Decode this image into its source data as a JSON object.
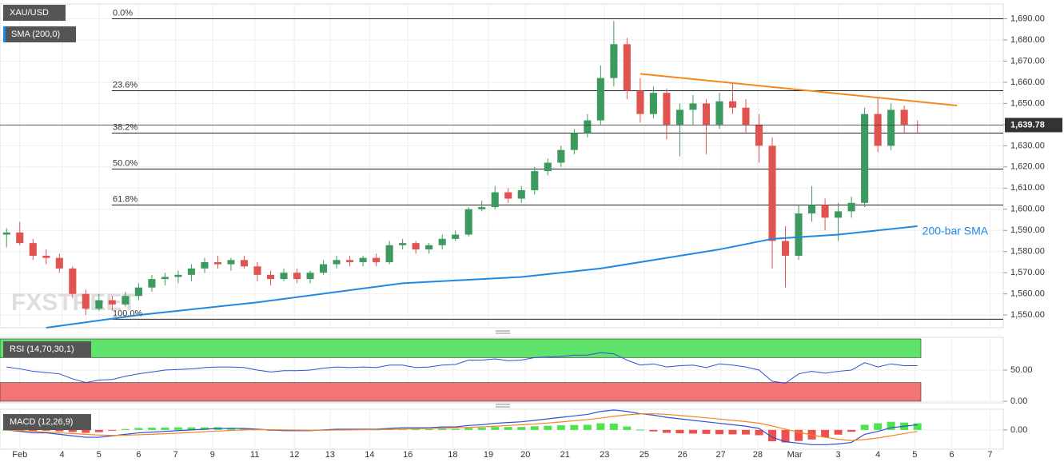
{
  "chart_data": [
    {
      "type": "candlestick",
      "title": "XAU/USD",
      "indicator_label": "SMA (200,0)",
      "watermark": "FXSTREET",
      "xlim": [
        -0.5,
        75.5
      ],
      "xticks": [
        {
          "value": 1.0,
          "label": "Feb"
        },
        {
          "value": 4.2,
          "label": "4"
        },
        {
          "value": 7.0,
          "label": "5"
        },
        {
          "value": 10.0,
          "label": "6"
        },
        {
          "value": 12.8,
          "label": "7"
        },
        {
          "value": 15.6,
          "label": "9"
        },
        {
          "value": 18.8,
          "label": "11"
        },
        {
          "value": 21.8,
          "label": "12"
        },
        {
          "value": 24.5,
          "label": "13"
        },
        {
          "value": 27.5,
          "label": "14"
        },
        {
          "value": 30.4,
          "label": "16"
        },
        {
          "value": 33.8,
          "label": "18"
        },
        {
          "value": 36.5,
          "label": "19"
        },
        {
          "value": 39.3,
          "label": "20"
        },
        {
          "value": 42.3,
          "label": "21"
        },
        {
          "value": 45.3,
          "label": "23"
        },
        {
          "value": 48.3,
          "label": "25"
        },
        {
          "value": 51.2,
          "label": "26"
        },
        {
          "value": 54.1,
          "label": "27"
        },
        {
          "value": 56.9,
          "label": "28"
        },
        {
          "value": 59.7,
          "label": "Mar"
        },
        {
          "value": 63.0,
          "label": "3"
        },
        {
          "value": 66.0,
          "label": "4"
        },
        {
          "value": 68.8,
          "label": "5"
        },
        {
          "value": 71.6,
          "label": "6"
        },
        {
          "value": 74.5,
          "label": "7"
        }
      ],
      "ylim": [
        1544,
        1697
      ],
      "yticks": [
        {
          "value": 1550,
          "label": "1,550.00"
        },
        {
          "value": 1560,
          "label": "1,560.00"
        },
        {
          "value": 1570,
          "label": "1,570.00"
        },
        {
          "value": 1580,
          "label": "1,580.00"
        },
        {
          "value": 1590,
          "label": "1,590.00"
        },
        {
          "value": 1600,
          "label": "1,600.00"
        },
        {
          "value": 1610,
          "label": "1,610.00"
        },
        {
          "value": 1620,
          "label": "1,620.00"
        },
        {
          "value": 1630,
          "label": "1,630.00"
        },
        {
          "value": 1640,
          "label": "1,640.00"
        },
        {
          "value": 1650,
          "label": "1,650.00"
        },
        {
          "value": 1660,
          "label": "1,660.00"
        },
        {
          "value": 1670,
          "label": "1,670.00"
        },
        {
          "value": 1680,
          "label": "1,680.00"
        },
        {
          "value": 1690,
          "label": "1,690.00"
        }
      ],
      "up_color": "#3c9a5f",
      "down_color": "#e0534f",
      "open": [
        1588,
        1589,
        1584,
        1578,
        1577,
        1572,
        1560,
        1553,
        1557,
        1555,
        1559,
        1563,
        1567,
        1568,
        1569,
        1572,
        1575,
        1574,
        1576,
        1573,
        1569,
        1567,
        1570,
        1567,
        1570,
        1574,
        1576,
        1575,
        1577,
        1575,
        1583,
        1584,
        1581,
        1583,
        1586,
        1588,
        1600,
        1601,
        1608,
        1605,
        1609,
        1618,
        1622,
        1628,
        1636,
        1642,
        1662,
        1678,
        1656,
        1645,
        1655,
        1640,
        1647,
        1650,
        1640,
        1651,
        1648,
        1640,
        1630,
        1585,
        1578,
        1598,
        1602,
        1596,
        1599,
        1603,
        1645,
        1630,
        1647,
        1640
      ],
      "high": [
        1591,
        1594,
        1586,
        1581,
        1579,
        1573,
        1562,
        1560,
        1559,
        1561,
        1565,
        1569,
        1570,
        1571,
        1574,
        1577,
        1578,
        1577,
        1578,
        1575,
        1571,
        1572,
        1572,
        1571,
        1576,
        1578,
        1578,
        1578,
        1579,
        1585,
        1586,
        1585,
        1584,
        1588,
        1590,
        1601,
        1604,
        1611,
        1610,
        1611,
        1620,
        1624,
        1630,
        1638,
        1645,
        1668,
        1689,
        1681,
        1662,
        1658,
        1657,
        1650,
        1654,
        1652,
        1655,
        1660,
        1652,
        1645,
        1634,
        1592,
        1602,
        1611,
        1605,
        1603,
        1606,
        1648,
        1653,
        1650,
        1649,
        1642
      ],
      "low": [
        1582,
        1583,
        1576,
        1574,
        1570,
        1558,
        1550,
        1552,
        1552,
        1554,
        1557,
        1561,
        1564,
        1565,
        1566,
        1570,
        1572,
        1571,
        1572,
        1566,
        1564,
        1566,
        1565,
        1565,
        1569,
        1572,
        1573,
        1573,
        1573,
        1574,
        1581,
        1579,
        1579,
        1581,
        1585,
        1587,
        1599,
        1600,
        1603,
        1603,
        1607,
        1616,
        1620,
        1626,
        1634,
        1640,
        1658,
        1652,
        1641,
        1643,
        1633,
        1625,
        1640,
        1626,
        1638,
        1645,
        1636,
        1622,
        1572,
        1563,
        1576,
        1594,
        1590,
        1585,
        1596,
        1601,
        1627,
        1628,
        1636,
        1636
      ],
      "close": [
        1589,
        1584,
        1578,
        1577,
        1572,
        1560,
        1553,
        1557,
        1555,
        1559,
        1563,
        1567,
        1568,
        1569,
        1572,
        1575,
        1574,
        1576,
        1573,
        1569,
        1567,
        1570,
        1567,
        1570,
        1574,
        1576,
        1575,
        1577,
        1575,
        1583,
        1584,
        1581,
        1583,
        1586,
        1588,
        1600,
        1601,
        1608,
        1605,
        1609,
        1618,
        1622,
        1628,
        1636,
        1642,
        1662,
        1678,
        1656,
        1645,
        1655,
        1640,
        1647,
        1650,
        1640,
        1651,
        1648,
        1640,
        1630,
        1585,
        1578,
        1598,
        1602,
        1596,
        1599,
        1603,
        1645,
        1630,
        1647,
        1640,
        1639.78
      ],
      "sma": {
        "name": "200-bar SMA",
        "color": "#1e88e5",
        "x": [
          3,
          10,
          19,
          30,
          39,
          45,
          54,
          58,
          63,
          69
        ],
        "values": [
          1544,
          1550,
          1556,
          1565,
          1568,
          1572,
          1581,
          1586,
          1588,
          1592
        ]
      },
      "trendline": {
        "color": "#f5871f",
        "x": [
          48,
          72
        ],
        "values": [
          1664,
          1649
        ]
      },
      "fibonacci": [
        {
          "value": 1690,
          "label": "0.0%"
        },
        {
          "value": 1656,
          "label": "23.6%"
        },
        {
          "value": 1636,
          "label": "38.2%"
        },
        {
          "value": 1619,
          "label": "50.0%"
        },
        {
          "value": 1602,
          "label": "61.8%"
        },
        {
          "value": 1548,
          "label": "100.0%"
        }
      ],
      "last_price": {
        "value": 1639.78,
        "label": "1,639.78"
      }
    },
    {
      "type": "line",
      "title": "RSI (14,70,30,1)",
      "ylim": [
        0,
        100
      ],
      "yticks": [
        {
          "value": 0,
          "label": "0.00"
        },
        {
          "value": 50,
          "label": "50.00"
        }
      ],
      "bands": [
        {
          "from": 70,
          "to": 100,
          "color": "#5fe36a"
        },
        {
          "from": 0,
          "to": 30,
          "color": "#f27474"
        }
      ],
      "series": [
        {
          "color": "#2f4fd8",
          "values": [
            55,
            52,
            48,
            46,
            44,
            36,
            30,
            34,
            35,
            40,
            44,
            47,
            50,
            51,
            52,
            54,
            55,
            55,
            54,
            50,
            47,
            49,
            49,
            50,
            53,
            55,
            54,
            55,
            54,
            58,
            58,
            54,
            55,
            58,
            59,
            66,
            66,
            68,
            65,
            66,
            70,
            71,
            72,
            74,
            74,
            78,
            76,
            66,
            58,
            60,
            55,
            57,
            58,
            54,
            60,
            58,
            55,
            50,
            32,
            29,
            44,
            48,
            45,
            48,
            50,
            62,
            55,
            60,
            57,
            57
          ]
        }
      ]
    },
    {
      "type": "macd",
      "title": "MACD (12,26,9)",
      "ylim": [
        -12,
        14
      ],
      "yticks": [
        {
          "value": 0,
          "label": "0.00"
        }
      ],
      "series": [
        {
          "color": "#2f4fd8",
          "values": [
            0,
            -1,
            -2,
            -2,
            -3,
            -4,
            -5,
            -5,
            -4,
            -3,
            -2,
            -1.5,
            -1,
            -0.5,
            0,
            0.5,
            1,
            1,
            1,
            0.5,
            0,
            -0.5,
            -0.5,
            -0.5,
            0,
            0.5,
            0.5,
            0.5,
            0.5,
            1,
            1.5,
            1.5,
            1.5,
            2,
            2,
            3,
            3.5,
            4.5,
            5,
            5.5,
            6.5,
            7.5,
            8.5,
            9.5,
            10.5,
            12.5,
            13.5,
            12.5,
            11,
            10,
            8.5,
            7.5,
            6.5,
            5.5,
            4.5,
            3.5,
            2.5,
            1,
            -5,
            -8,
            -9,
            -10,
            -10,
            -9.5,
            -8.5,
            -3,
            -1,
            1.5,
            2.5,
            3.5
          ]
        },
        {
          "color": "#f5871f",
          "values": [
            0,
            -0.5,
            -1,
            -1.5,
            -2,
            -2.5,
            -3,
            -3.5,
            -3.7,
            -3.6,
            -3.3,
            -3,
            -2.6,
            -2.2,
            -1.7,
            -1.2,
            -0.8,
            -0.4,
            0,
            0.1,
            0.1,
            0,
            -0.1,
            -0.2,
            -0.2,
            -0.1,
            0,
            0.1,
            0.2,
            0.4,
            0.6,
            0.8,
            1,
            1.2,
            1.4,
            1.7,
            2,
            2.5,
            3,
            3.5,
            4,
            4.7,
            5.4,
            6.2,
            7,
            8,
            9.2,
            10.2,
            10.8,
            11,
            10.5,
            9.8,
            9,
            8.2,
            7.4,
            6.5,
            5.6,
            4.6,
            2.7,
            0.5,
            -1.5,
            -3.5,
            -5,
            -6.3,
            -7.2,
            -6.5,
            -5.5,
            -4,
            -2.5,
            -1
          ]
        }
      ],
      "histogram": {
        "up_color": "#22dd22",
        "down_color": "#ee2222",
        "values": [
          0,
          -0.5,
          -1,
          -0.5,
          -1,
          -1.5,
          -2,
          -1.5,
          -0.3,
          0.6,
          1.3,
          1.5,
          1.6,
          1.7,
          1.7,
          1.7,
          1.8,
          1.4,
          1,
          0.4,
          -0.1,
          -0.5,
          -0.4,
          -0.3,
          0.2,
          0.6,
          0.5,
          0.4,
          0.3,
          0.6,
          0.9,
          0.7,
          0.5,
          0.8,
          0.6,
          1.3,
          1.5,
          2,
          2,
          2,
          2.5,
          2.8,
          3.1,
          3.3,
          3.5,
          4.5,
          4.3,
          2.3,
          0.2,
          -1,
          -2,
          -2.3,
          -2.5,
          -2.7,
          -2.9,
          -3,
          -3.1,
          -3.6,
          -7.7,
          -8.5,
          -7.5,
          -6.5,
          -5,
          -3.2,
          -1.3,
          3.5,
          4.5,
          5.5,
          5,
          4.5
        ]
      }
    }
  ]
}
